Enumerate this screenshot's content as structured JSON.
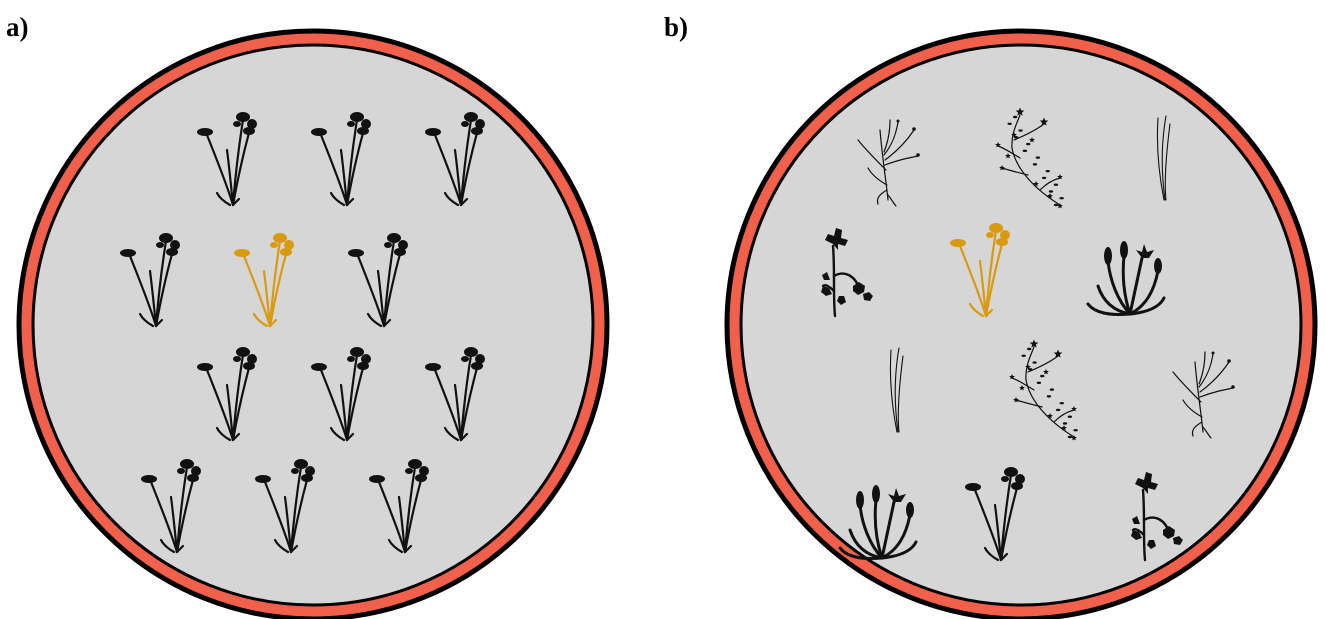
{
  "panels": [
    {
      "label": "a)",
      "focal_plant_color": "#d99a0f",
      "plants": [
        {
          "species": "cowslip",
          "focal": false
        },
        {
          "species": "cowslip",
          "focal": false
        },
        {
          "species": "cowslip",
          "focal": false
        },
        {
          "species": "cowslip",
          "focal": false
        },
        {
          "species": "cowslip",
          "focal": true
        },
        {
          "species": "cowslip",
          "focal": false
        },
        {
          "species": "cowslip",
          "focal": false
        },
        {
          "species": "cowslip",
          "focal": false
        },
        {
          "species": "cowslip",
          "focal": false
        },
        {
          "species": "cowslip",
          "focal": false
        },
        {
          "species": "cowslip",
          "focal": false
        },
        {
          "species": "cowslip",
          "focal": false
        }
      ]
    },
    {
      "label": "b)",
      "focal_plant_color": "#d99a0f",
      "plants": [
        {
          "species": "rooted-sprig",
          "focal": false
        },
        {
          "species": "starry-herb",
          "focal": false
        },
        {
          "species": "grass-blade",
          "focal": false
        },
        {
          "species": "leafy-forb",
          "focal": false
        },
        {
          "species": "cowslip",
          "focal": true
        },
        {
          "species": "tulip-rosette",
          "focal": false
        },
        {
          "species": "grass-blade",
          "focal": false
        },
        {
          "species": "starry-herb",
          "focal": false
        },
        {
          "species": "rooted-sprig",
          "focal": false
        },
        {
          "species": "tulip-rosette",
          "focal": false
        },
        {
          "species": "cowslip",
          "focal": false
        },
        {
          "species": "leafy-forb",
          "focal": false
        }
      ]
    }
  ],
  "colors": {
    "ring": "#f0604a",
    "outline": "#000000",
    "plot_fill": "#d6d6d6",
    "plant": "#111111"
  }
}
